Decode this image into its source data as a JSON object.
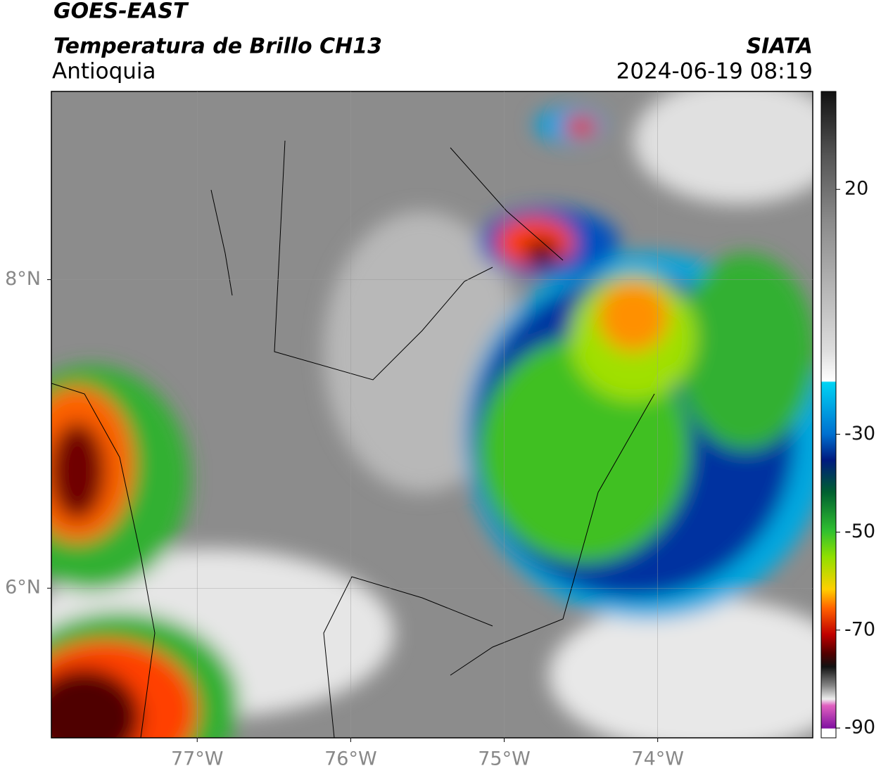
{
  "header": {
    "satellite": "GOES-EAST",
    "product": "Temperatura de Brillo CH13",
    "region": "Antioquia",
    "source": "SIATA",
    "datetime": "2024-06-19 08:19"
  },
  "map": {
    "xlim": [
      -77.95,
      -72.99
    ],
    "ylim": [
      5.03,
      9.22
    ],
    "xticks": [
      {
        "value": -77,
        "label": "77°W"
      },
      {
        "value": -76,
        "label": "76°W"
      },
      {
        "value": -75,
        "label": "75°W"
      },
      {
        "value": -74,
        "label": "74°W"
      }
    ],
    "yticks": [
      {
        "value": 6,
        "label": "6°N"
      },
      {
        "value": 8,
        "label": "8°N"
      }
    ],
    "grid": true
  },
  "colorbar": {
    "lim": [
      -92,
      40
    ],
    "ticks": [
      20,
      -30,
      -50,
      -70,
      -90
    ]
  }
}
